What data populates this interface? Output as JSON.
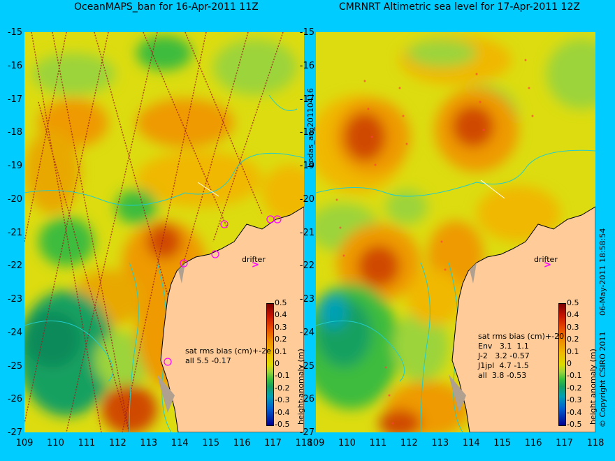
{
  "titles": {
    "left": "OceanMAPS_ban for 16-Apr-2011 11Z",
    "right": "CMRNRT Altimetric sea level  for 17-Apr-2011 12Z"
  },
  "axes": {
    "y_ticks": [
      "-15",
      "-16",
      "-17",
      "-18",
      "-19",
      "-20",
      "-21",
      "-22",
      "-23",
      "-24",
      "-25",
      "-26",
      "-27"
    ],
    "x_ticks": [
      "109",
      "110",
      "111",
      "112",
      "113",
      "114",
      "115",
      "116",
      "117",
      "118"
    ]
  },
  "colorbar": {
    "label": "height anomaly (m)",
    "ticks": [
      "0.5",
      "0.4",
      "0.3",
      "0.2",
      "0.1",
      "0",
      "-0.1",
      "-0.2",
      "-0.3",
      "-0.4",
      "-0.5"
    ],
    "range": [
      -0.5,
      0.5
    ]
  },
  "left_panel": {
    "stats_header": "sat rms bias (cm)+-2e",
    "stats_rows": [
      "all 5.5 -0.17"
    ],
    "drifter_label": "drifter",
    "drifter_marker": ">",
    "side_label": "bodas_an_20110416"
  },
  "right_panel": {
    "stats_header": "sat rms bias (cm)+-20",
    "stats_rows": [
      "Env   3.1  1.1",
      "J-2   3.2 -0.57",
      "J1jpl  4.7 -1.5",
      "all  3.8 -0.53"
    ],
    "drifter_label": "drifter",
    "drifter_marker": ">",
    "side_label": "06-May-2011 18:58:54",
    "copyright": "© Copyright CSIRO 2011"
  },
  "colors": {
    "background": "#00ccff",
    "land": "#ffcc99",
    "positive_high": "#d04800",
    "positive_mid": "#ee9a00",
    "neutral": "#d8dc00",
    "negative": "#3cbc3c",
    "negative_low": "#0070d0",
    "contour": "#22cccc",
    "drifter": "#ff00ff"
  }
}
